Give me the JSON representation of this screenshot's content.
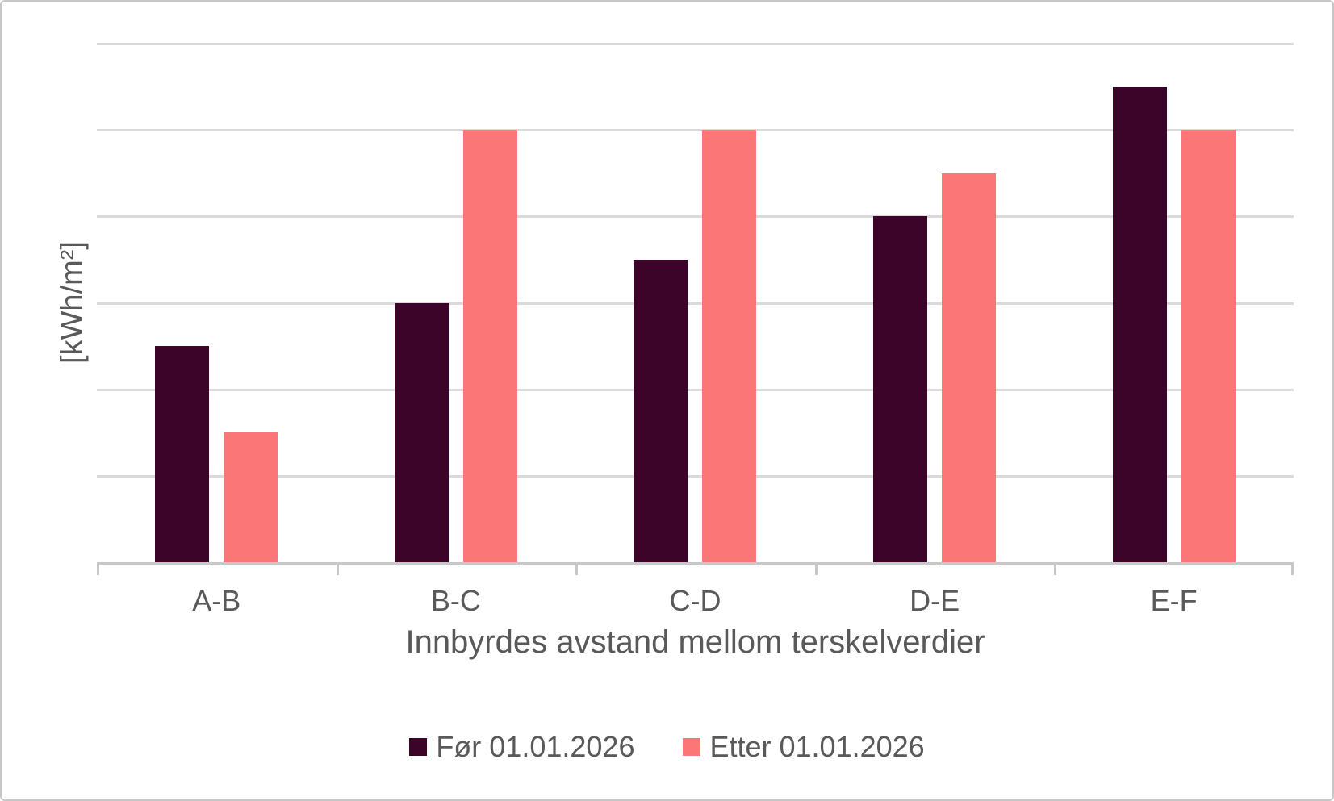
{
  "chart_data": {
    "type": "bar",
    "categories": [
      "A-B",
      "B-C",
      "C-D",
      "D-E",
      "E-F"
    ],
    "series": [
      {
        "name": "Før 01.01.2026",
        "color": "#3B0428",
        "values": [
          2.5,
          3.0,
          3.5,
          4.0,
          5.5
        ]
      },
      {
        "name": "Etter 01.01.2026",
        "color": "#FB7676",
        "values": [
          1.5,
          5.0,
          5.0,
          4.5,
          5.0
        ]
      }
    ],
    "title": "",
    "xlabel": "Innbyrdes avstand mellom terskelverdier",
    "ylabel": "[kWh/m²]",
    "ylim": [
      0,
      6
    ],
    "y_tick_labels_visible": false,
    "gridlines": {
      "orientation": "horizontal",
      "interval": 1,
      "color": "#dadada"
    },
    "axis_color": "#c8c8c8",
    "text_color": "#595959",
    "legend_position": "bottom"
  }
}
